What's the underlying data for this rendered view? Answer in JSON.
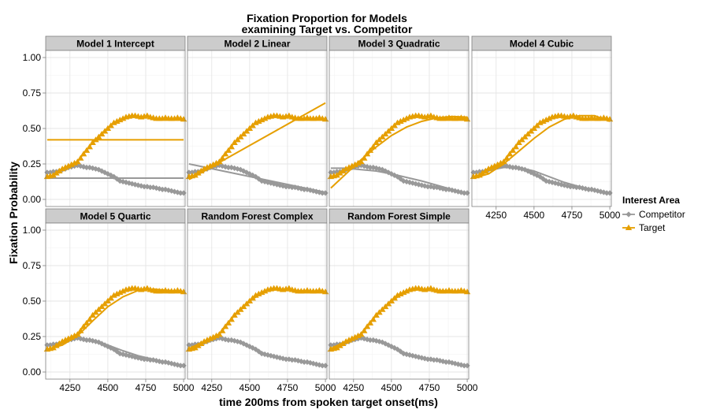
{
  "chart_data": {
    "type": "line",
    "title_line1": "Fixation Proportion for Models",
    "title_line2": "examining Target vs. Competitor",
    "xlabel": "time 200ms from spoken target onset(ms)",
    "ylabel": "Fixation Probability",
    "xlim": [
      4090,
      5010
    ],
    "ylim": [
      -0.05,
      1.05
    ],
    "xticks": [
      4250,
      4500,
      4750,
      5000
    ],
    "yticks": [
      "0.00",
      "0.25",
      "0.50",
      "0.75",
      "1.00"
    ],
    "grid": true,
    "legend_position": "right",
    "legend_title": "Interest Area",
    "colors": {
      "Competitor": "#999999",
      "Target": "#E69F00"
    },
    "series": [
      {
        "name": "Competitor",
        "marker": "diamond",
        "x": [
          4100,
          4120,
          4140,
          4160,
          4180,
          4200,
          4220,
          4240,
          4260,
          4280,
          4300,
          4320,
          4340,
          4360,
          4380,
          4400,
          4420,
          4440,
          4460,
          4480,
          4500,
          4520,
          4540,
          4560,
          4580,
          4600,
          4620,
          4640,
          4660,
          4680,
          4700,
          4720,
          4740,
          4760,
          4780,
          4800,
          4820,
          4840,
          4860,
          4880,
          4900,
          4920,
          4940,
          4960,
          4980,
          5000
        ],
        "y": [
          0.19,
          0.19,
          0.195,
          0.195,
          0.2,
          0.21,
          0.215,
          0.225,
          0.23,
          0.235,
          0.24,
          0.235,
          0.23,
          0.225,
          0.225,
          0.22,
          0.215,
          0.21,
          0.2,
          0.19,
          0.18,
          0.17,
          0.16,
          0.145,
          0.13,
          0.125,
          0.12,
          0.115,
          0.11,
          0.105,
          0.1,
          0.095,
          0.09,
          0.09,
          0.085,
          0.085,
          0.08,
          0.075,
          0.07,
          0.07,
          0.065,
          0.06,
          0.055,
          0.05,
          0.045,
          0.045
        ]
      },
      {
        "name": "Target",
        "marker": "triangle",
        "x": [
          4100,
          4120,
          4140,
          4160,
          4180,
          4200,
          4220,
          4240,
          4260,
          4280,
          4300,
          4320,
          4340,
          4360,
          4380,
          4400,
          4420,
          4440,
          4460,
          4480,
          4500,
          4520,
          4540,
          4560,
          4580,
          4600,
          4620,
          4640,
          4660,
          4680,
          4700,
          4720,
          4740,
          4760,
          4780,
          4800,
          4820,
          4840,
          4860,
          4880,
          4900,
          4920,
          4940,
          4960,
          4980,
          5000
        ],
        "y": [
          0.16,
          0.165,
          0.17,
          0.185,
          0.2,
          0.215,
          0.225,
          0.235,
          0.245,
          0.255,
          0.265,
          0.29,
          0.32,
          0.345,
          0.37,
          0.4,
          0.42,
          0.44,
          0.46,
          0.48,
          0.5,
          0.52,
          0.54,
          0.55,
          0.56,
          0.57,
          0.58,
          0.585,
          0.59,
          0.59,
          0.585,
          0.58,
          0.585,
          0.59,
          0.58,
          0.575,
          0.57,
          0.57,
          0.57,
          0.575,
          0.57,
          0.57,
          0.57,
          0.575,
          0.57,
          0.565
        ]
      }
    ],
    "panels": [
      {
        "label": "Model 1 Intercept",
        "fits": {
          "Competitor": {
            "x": [
              4100,
              5000
            ],
            "y": [
              0.15,
              0.15
            ]
          },
          "Target": {
            "x": [
              4100,
              5000
            ],
            "y": [
              0.42,
              0.42
            ]
          }
        }
      },
      {
        "label": "Model 2 Linear",
        "fits": {
          "Competitor": {
            "x": [
              4100,
              5000
            ],
            "y": [
              0.25,
              0.05
            ]
          },
          "Target": {
            "x": [
              4100,
              5000
            ],
            "y": [
              0.14,
              0.68
            ]
          }
        }
      },
      {
        "label": "Model 3 Quadratic",
        "fits": {
          "Competitor": {
            "x": [
              4100,
              4200,
              4300,
              4400,
              4500,
              4600,
              4700,
              4800,
              4900,
              5000
            ],
            "y": [
              0.22,
              0.22,
              0.21,
              0.2,
              0.18,
              0.155,
              0.13,
              0.1,
              0.07,
              0.04
            ]
          },
          "Target": {
            "x": [
              4100,
              4200,
              4300,
              4400,
              4500,
              4600,
              4700,
              4800,
              4900,
              5000
            ],
            "y": [
              0.08,
              0.18,
              0.28,
              0.37,
              0.45,
              0.51,
              0.55,
              0.575,
              0.585,
              0.58
            ]
          }
        }
      },
      {
        "label": "Model 4 Cubic",
        "fits": {
          "Competitor": {
            "x": [
              4100,
              4200,
              4300,
              4400,
              4500,
              4600,
              4700,
              4800,
              4900,
              5000
            ],
            "y": [
              0.185,
              0.205,
              0.225,
              0.225,
              0.2,
              0.16,
              0.12,
              0.09,
              0.065,
              0.045
            ]
          },
          "Target": {
            "x": [
              4100,
              4200,
              4300,
              4400,
              4500,
              4600,
              4700,
              4800,
              4900,
              5000
            ],
            "y": [
              0.15,
              0.18,
              0.25,
              0.34,
              0.43,
              0.51,
              0.565,
              0.59,
              0.59,
              0.55
            ]
          }
        }
      },
      {
        "label": "Model 5 Quartic",
        "fits": {
          "Competitor": {
            "x": [
              4100,
              4200,
              4300,
              4400,
              4500,
              4600,
              4700,
              4800,
              4900,
              5000
            ],
            "y": [
              0.19,
              0.21,
              0.235,
              0.225,
              0.19,
              0.15,
              0.115,
              0.09,
              0.065,
              0.045
            ]
          },
          "Target": {
            "x": [
              4100,
              4200,
              4300,
              4400,
              4500,
              4600,
              4700,
              4800,
              4900,
              5000
            ],
            "y": [
              0.16,
              0.19,
              0.255,
              0.36,
              0.46,
              0.53,
              0.575,
              0.585,
              0.575,
              0.565
            ]
          }
        }
      },
      {
        "label": "Random Forest Complex",
        "fits": {
          "Competitor": {
            "x": [
              4100,
              4200,
              4300,
              4400,
              4500,
              4600,
              4700,
              4800,
              4900,
              5000
            ],
            "y": [
              0.19,
              0.205,
              0.235,
              0.22,
              0.18,
              0.13,
              0.1,
              0.085,
              0.065,
              0.045
            ]
          },
          "Target": {
            "x": [
              4100,
              4200,
              4300,
              4400,
              4500,
              4600,
              4700,
              4800,
              4900,
              5000
            ],
            "y": [
              0.165,
              0.215,
              0.265,
              0.4,
              0.5,
              0.57,
              0.585,
              0.575,
              0.57,
              0.565
            ]
          }
        }
      },
      {
        "label": "Random Forest Simple",
        "fits": {
          "Competitor": {
            "x": [
              4100,
              4200,
              4300,
              4400,
              4500,
              4600,
              4700,
              4800,
              4900,
              5000
            ],
            "y": [
              0.19,
              0.205,
              0.235,
              0.22,
              0.18,
              0.13,
              0.1,
              0.085,
              0.065,
              0.045
            ]
          },
          "Target": {
            "x": [
              4100,
              4200,
              4300,
              4400,
              4500,
              4600,
              4700,
              4800,
              4900,
              5000
            ],
            "y": [
              0.165,
              0.215,
              0.265,
              0.4,
              0.5,
              0.57,
              0.585,
              0.575,
              0.57,
              0.565
            ]
          }
        }
      }
    ]
  }
}
